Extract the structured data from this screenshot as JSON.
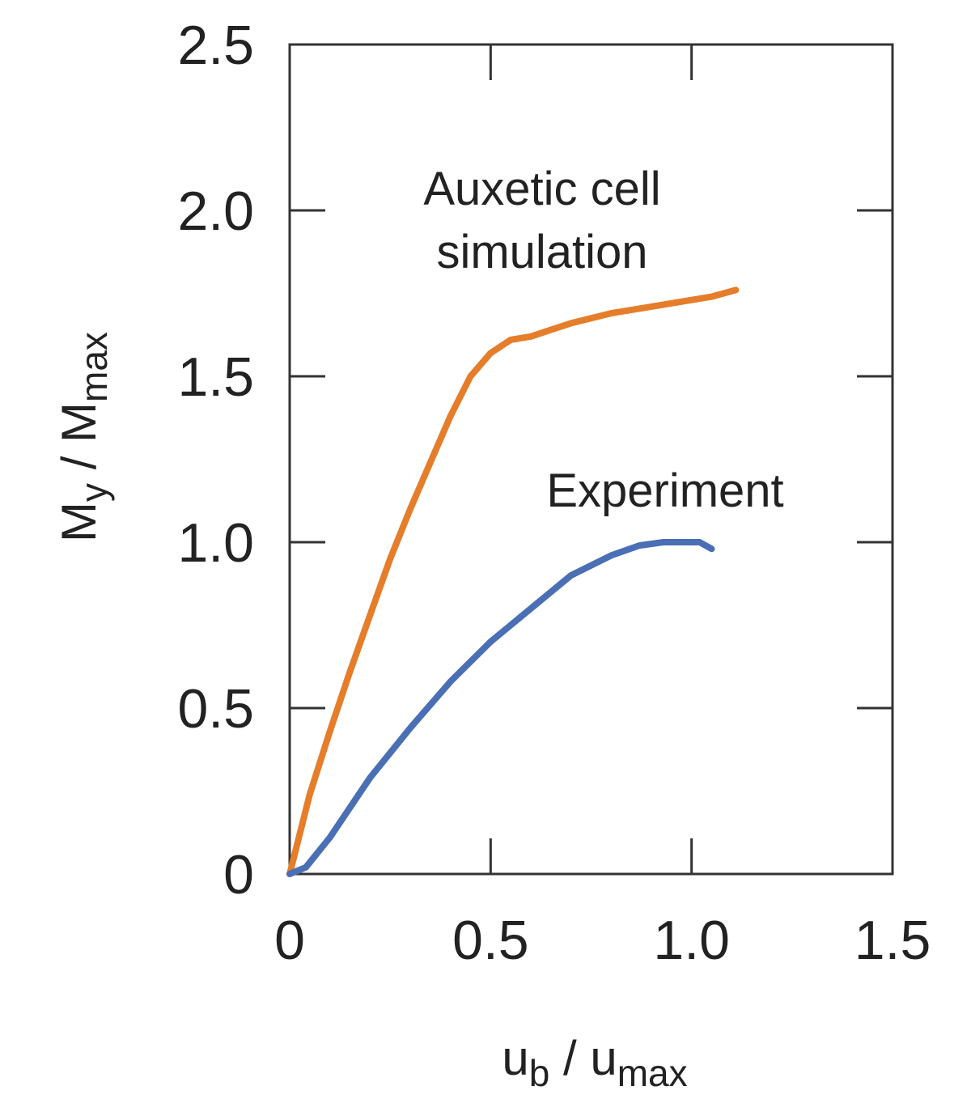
{
  "chart_data": {
    "type": "line",
    "xlabel": {
      "main": "u",
      "sub": "b",
      "sep": " / u",
      "sub2": "max"
    },
    "ylabel": {
      "main": "M",
      "sub": "y",
      "sep": " / M",
      "sub2": "max"
    },
    "xlim": [
      0,
      1.5
    ],
    "ylim": [
      0,
      2.5
    ],
    "xticks": [
      {
        "value": 0,
        "label": "0"
      },
      {
        "value": 0.5,
        "label": "0.5"
      },
      {
        "value": 1.0,
        "label": "1.0"
      },
      {
        "value": 1.5,
        "label": "1.5"
      }
    ],
    "yticks": [
      {
        "value": 0,
        "label": "0"
      },
      {
        "value": 0.5,
        "label": "0.5"
      },
      {
        "value": 1.0,
        "label": "1.0"
      },
      {
        "value": 1.5,
        "label": "1.5"
      },
      {
        "value": 2.0,
        "label": "2.0"
      },
      {
        "value": 2.5,
        "label": "2.5"
      }
    ],
    "grid": false,
    "series": [
      {
        "key": "auxetic",
        "color": "#e57d2a",
        "label_lines": [
          "Auxetic cell",
          "simulation"
        ],
        "x": [
          0,
          0.05,
          0.1,
          0.15,
          0.2,
          0.25,
          0.3,
          0.35,
          0.4,
          0.45,
          0.5,
          0.55,
          0.6,
          0.65,
          0.7,
          0.8,
          0.9,
          1.0,
          1.05,
          1.11
        ],
        "y": [
          0,
          0.24,
          0.43,
          0.61,
          0.78,
          0.95,
          1.1,
          1.24,
          1.38,
          1.5,
          1.57,
          1.61,
          1.62,
          1.64,
          1.66,
          1.69,
          1.71,
          1.73,
          1.74,
          1.76
        ]
      },
      {
        "key": "experiment",
        "color": "#4a6fb5",
        "label_lines": [
          "Experiment"
        ],
        "x": [
          0,
          0.04,
          0.1,
          0.15,
          0.2,
          0.3,
          0.4,
          0.5,
          0.6,
          0.7,
          0.8,
          0.87,
          0.93,
          0.98,
          1.02,
          1.05
        ],
        "y": [
          0,
          0.02,
          0.11,
          0.2,
          0.29,
          0.44,
          0.58,
          0.7,
          0.8,
          0.9,
          0.96,
          0.99,
          1.0,
          1.0,
          1.0,
          0.98
        ]
      }
    ]
  }
}
